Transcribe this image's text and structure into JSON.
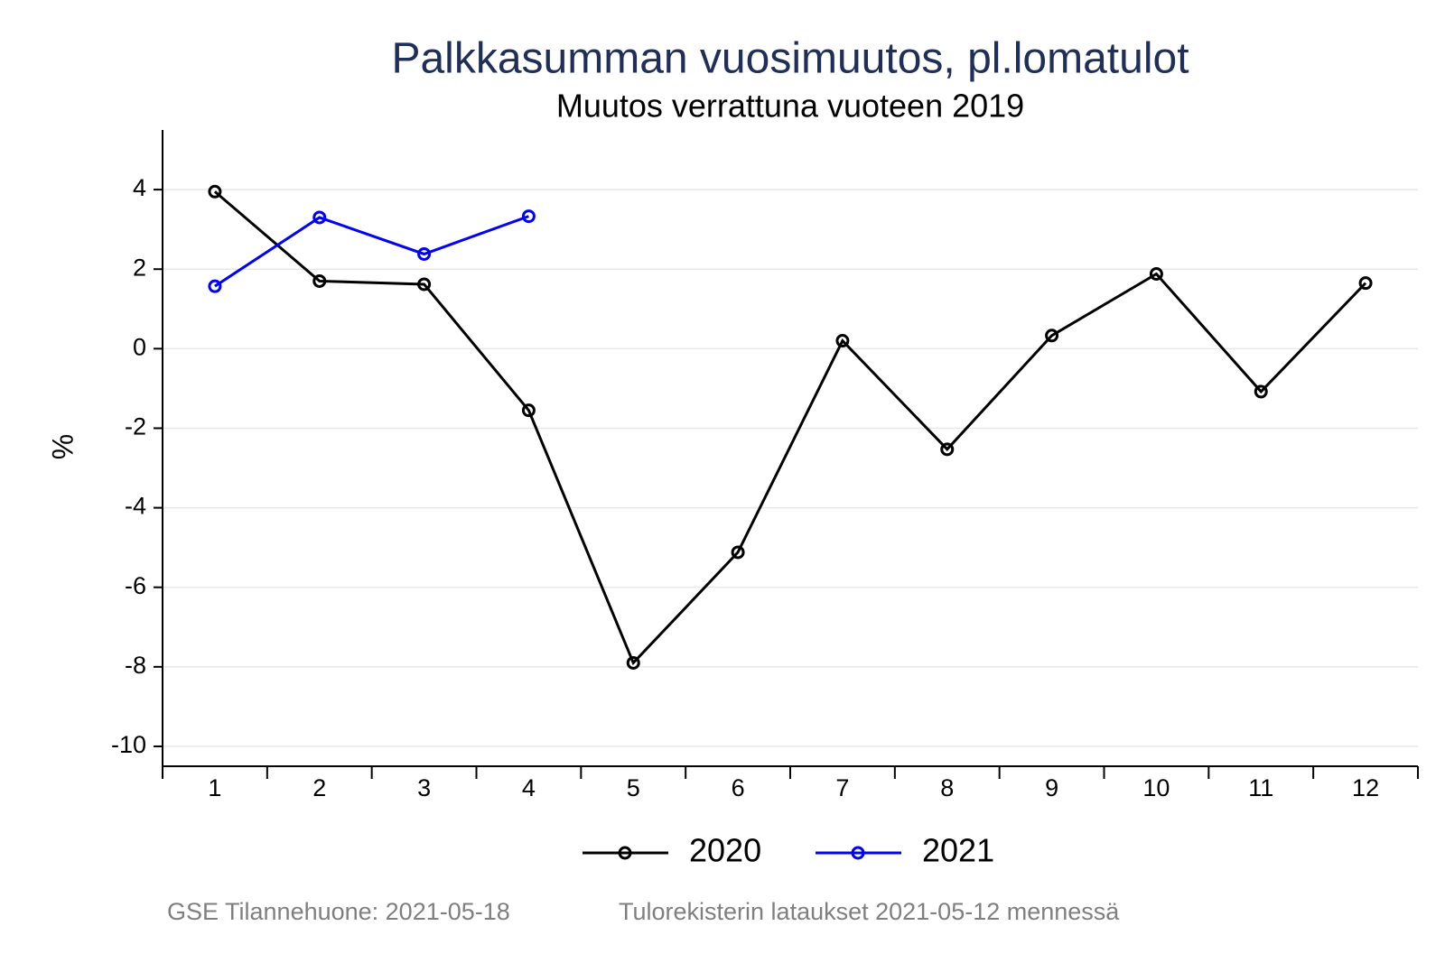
{
  "chart_data": {
    "type": "line",
    "title": "Palkkasumman vuosimuutos, pl.lomatulot",
    "subtitle": "Muutos verrattuna vuoteen 2019",
    "ylabel": "%",
    "categories": [
      "1",
      "2",
      "3",
      "4",
      "5",
      "6",
      "7",
      "8",
      "9",
      "10",
      "11",
      "12"
    ],
    "series": [
      {
        "name": "2020",
        "color": "#000000",
        "values": [
          3.95,
          1.7,
          1.62,
          -1.55,
          -7.9,
          -5.12,
          0.2,
          -2.53,
          0.33,
          1.88,
          -1.08,
          1.65
        ]
      },
      {
        "name": "2021",
        "color": "#0000ff",
        "values": [
          1.57,
          3.3,
          2.38,
          3.33,
          null,
          null,
          null,
          null,
          null,
          null,
          null,
          null
        ]
      }
    ],
    "ylim": [
      -10.5,
      5.5
    ],
    "yticks": [
      -10,
      -8,
      -6,
      -4,
      -2,
      0,
      2,
      4
    ],
    "grid": true,
    "legend": "bottom",
    "footnotes": [
      "GSE Tilannehuone: 2021-05-18",
      "Tulorekisterin lataukset 2021-05-12 mennessä"
    ]
  }
}
